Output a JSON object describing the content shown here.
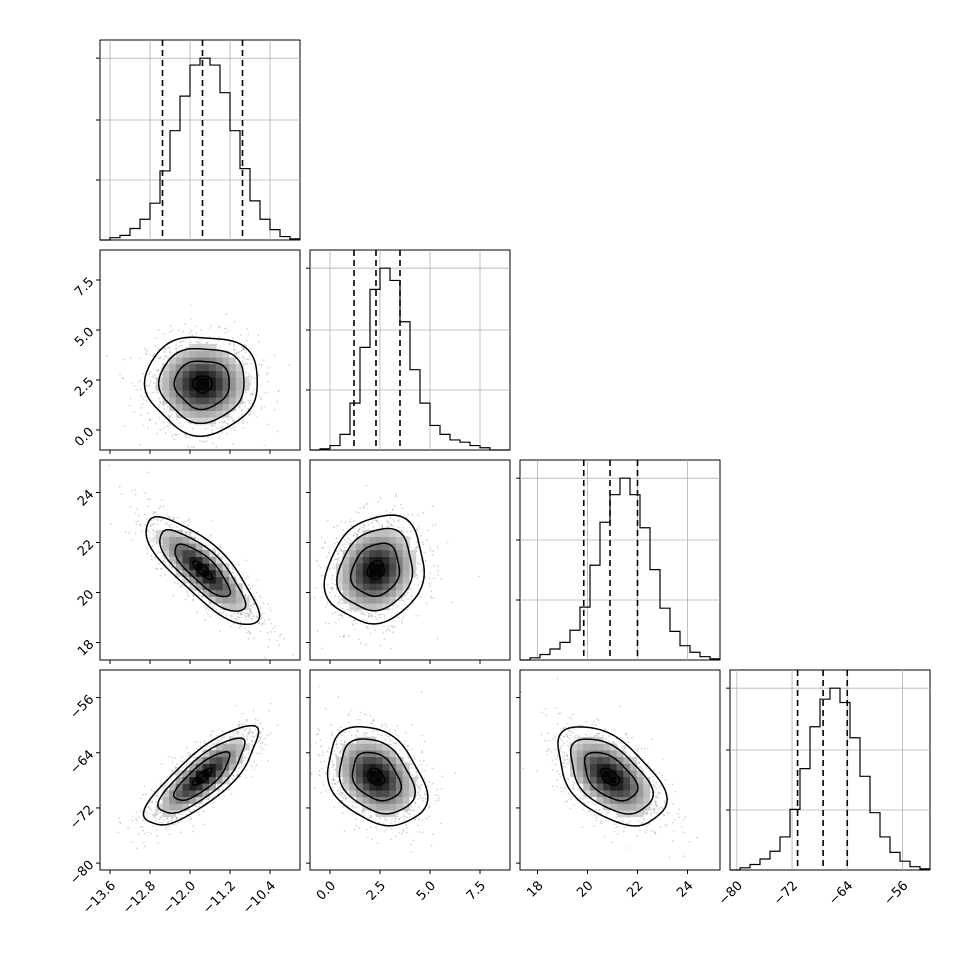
{
  "chart_data": {
    "type": "corner",
    "params": 4,
    "axis_ranges": [
      [
        -13.8,
        -9.8
      ],
      [
        -1.0,
        9.0
      ],
      [
        17.3,
        25.3
      ],
      [
        -81.0,
        -52.0
      ]
    ],
    "ticks": [
      {
        "values": [
          -13.6,
          -12.8,
          -12.0,
          -11.2,
          -10.4
        ],
        "labels": [
          "−13.6",
          "−12.8",
          "−12.0",
          "−11.2",
          "−10.4"
        ]
      },
      {
        "values": [
          0.0,
          2.5,
          5.0,
          7.5
        ],
        "labels": [
          "0.0",
          "2.5",
          "5.0",
          "7.5"
        ]
      },
      {
        "values": [
          18,
          20,
          22,
          24
        ],
        "labels": [
          "18",
          "20",
          "22",
          "24"
        ]
      },
      {
        "values": [
          -80,
          -72,
          -64,
          -56
        ],
        "labels": [
          "−80",
          "−72",
          "−64",
          "−56"
        ]
      }
    ],
    "means": [
      -11.75,
      2.3,
      20.9,
      -67.5
    ],
    "sds": [
      0.55,
      1.2,
      1.05,
      3.5
    ],
    "quantiles": [
      [
        -12.55,
        -11.75,
        -10.95
      ],
      [
        1.2,
        2.3,
        3.5
      ],
      [
        19.85,
        20.9,
        22.0
      ],
      [
        -71.2,
        -67.5,
        -64.0
      ]
    ],
    "correlations": [
      [
        1.0,
        0.0,
        -0.8,
        0.8
      ],
      [
        0.0,
        1.0,
        0.15,
        -0.3
      ],
      [
        -0.8,
        0.15,
        1.0,
        -0.5
      ],
      [
        0.8,
        -0.3,
        -0.5,
        1.0
      ]
    ],
    "histograms": [
      {
        "range": [
          -13.8,
          -9.8
        ],
        "counts": [
          0,
          2,
          4,
          10,
          18,
          32,
          60,
          95,
          125,
          152,
          158,
          152,
          128,
          95,
          62,
          34,
          18,
          9,
          3,
          1
        ]
      },
      {
        "range": [
          -1.0,
          9.0
        ],
        "counts": [
          0,
          1,
          4,
          14,
          42,
          92,
          144,
          163,
          152,
          115,
          72,
          42,
          22,
          14,
          9,
          7,
          4,
          2,
          0,
          0
        ]
      },
      {
        "range": [
          17.3,
          25.3
        ],
        "counts": [
          0,
          2,
          5,
          10,
          16,
          27,
          48,
          86,
          125,
          150,
          165,
          150,
          120,
          82,
          47,
          26,
          13,
          7,
          3,
          1
        ]
      },
      {
        "range": [
          -81.0,
          -52.0
        ],
        "counts": [
          0,
          2,
          5,
          10,
          17,
          30,
          55,
          92,
          130,
          155,
          165,
          152,
          120,
          85,
          52,
          30,
          16,
          8,
          3,
          1
        ]
      }
    ],
    "grid": true,
    "series": [
      {
        "name": "",
        "kind": "samples with density contours"
      }
    ]
  },
  "colors": {
    "contour": "#000000",
    "scatter": "#888888",
    "grid": "#b0b0b0",
    "cell": "#000000"
  }
}
